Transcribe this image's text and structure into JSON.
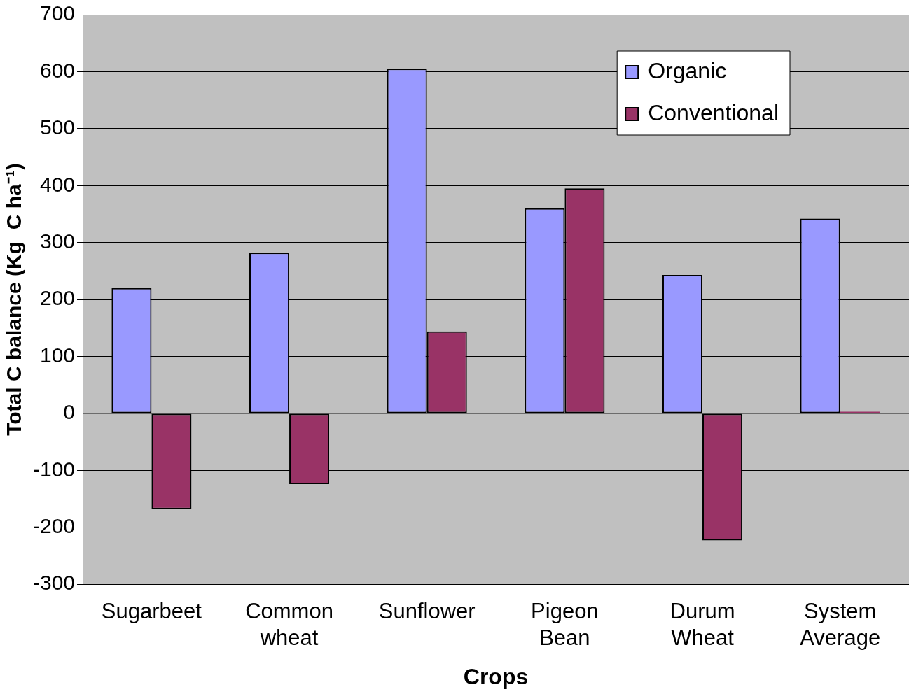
{
  "chart_data": {
    "type": "bar",
    "xlabel": "Crops",
    "ylabel": "Total C balance (Kg  C ha⁻¹)",
    "categories": [
      "Sugarbeet",
      "Common wheat",
      "Sunflower",
      "Pigeon Bean",
      "Durum Wheat",
      "System Average"
    ],
    "series": [
      {
        "name": "Organic",
        "color": "#9999ff",
        "values": [
          220,
          282,
          605,
          360,
          243,
          342
        ]
      },
      {
        "name": "Conventional",
        "color": "#993366",
        "values": [
          -168,
          -124,
          144,
          395,
          -223,
          3
        ]
      }
    ],
    "ylim": [
      -300,
      700
    ],
    "yticks": [
      -300,
      -200,
      -100,
      0,
      100,
      200,
      300,
      400,
      500,
      600,
      700
    ],
    "grid": "y",
    "legend": "top right"
  }
}
